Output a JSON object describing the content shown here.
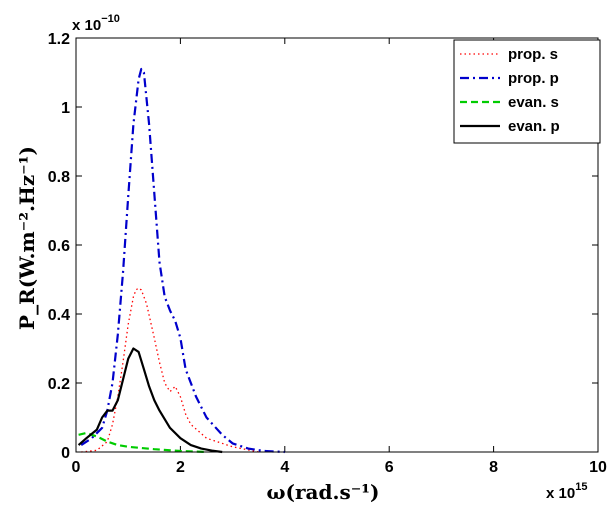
{
  "chart_data": {
    "type": "line",
    "xlabel": "ω(rad.s⁻¹)",
    "ylabel": "P_R(W.m⁻².Hz⁻¹)",
    "x_multiplier": "x 10",
    "x_multiplier_exp": "15",
    "y_multiplier": "x 10",
    "y_multiplier_exp": "−10",
    "xlim": [
      0,
      10
    ],
    "ylim": [
      0,
      1.2
    ],
    "xticks": [
      "0",
      "2",
      "4",
      "6",
      "8",
      "10"
    ],
    "yticks": [
      "0",
      "0.2",
      "0.4",
      "0.6",
      "0.8",
      "1",
      "1.2"
    ],
    "legend_position": "top-right",
    "series": [
      {
        "name": "prop. s",
        "color": "#ff0000",
        "dash": "dotted",
        "x": [
          0.1,
          0.4,
          0.6,
          0.7,
          0.8,
          0.9,
          1.0,
          1.1,
          1.15,
          1.2,
          1.25,
          1.35,
          1.5,
          1.6,
          1.7,
          1.8,
          1.9,
          2.0,
          2.1,
          2.2,
          2.5,
          3.0,
          3.5
        ],
        "y": [
          0.0,
          0.005,
          0.03,
          0.08,
          0.16,
          0.26,
          0.37,
          0.45,
          0.47,
          0.475,
          0.47,
          0.43,
          0.33,
          0.26,
          0.2,
          0.175,
          0.19,
          0.16,
          0.11,
          0.08,
          0.04,
          0.015,
          0.0
        ]
      },
      {
        "name": "prop. p",
        "color": "#0000cc",
        "dash": "dashdot",
        "x": [
          0.1,
          0.3,
          0.5,
          0.6,
          0.7,
          0.8,
          0.9,
          1.0,
          1.1,
          1.2,
          1.25,
          1.3,
          1.4,
          1.5,
          1.6,
          1.7,
          1.8,
          1.9,
          2.0,
          2.1,
          2.3,
          2.5,
          2.8,
          3.0,
          3.3,
          3.6,
          4.0
        ],
        "y": [
          0.02,
          0.04,
          0.07,
          0.12,
          0.2,
          0.34,
          0.52,
          0.74,
          0.95,
          1.08,
          1.11,
          1.1,
          0.95,
          0.75,
          0.55,
          0.45,
          0.41,
          0.38,
          0.33,
          0.24,
          0.16,
          0.1,
          0.05,
          0.025,
          0.01,
          0.003,
          0.0
        ]
      },
      {
        "name": "evan. s",
        "color": "#00cc00",
        "dash": "dashed",
        "x": [
          0.05,
          0.2,
          0.4,
          0.6,
          0.8,
          1.0,
          1.5,
          2.0,
          2.5
        ],
        "y": [
          0.05,
          0.055,
          0.045,
          0.03,
          0.02,
          0.015,
          0.008,
          0.003,
          0.0
        ]
      },
      {
        "name": "evan. p",
        "color": "#000000",
        "dash": "solid",
        "x": [
          0.05,
          0.2,
          0.4,
          0.5,
          0.6,
          0.7,
          0.8,
          0.9,
          1.0,
          1.1,
          1.2,
          1.3,
          1.4,
          1.5,
          1.6,
          1.8,
          2.0,
          2.2,
          2.4,
          2.6,
          2.8
        ],
        "y": [
          0.02,
          0.04,
          0.065,
          0.1,
          0.12,
          0.12,
          0.15,
          0.21,
          0.27,
          0.3,
          0.29,
          0.24,
          0.19,
          0.15,
          0.12,
          0.07,
          0.04,
          0.02,
          0.01,
          0.004,
          0.0
        ]
      }
    ]
  }
}
